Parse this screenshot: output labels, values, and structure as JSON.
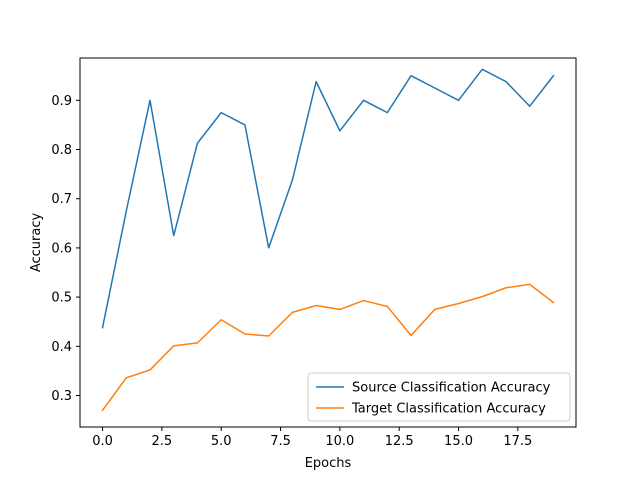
{
  "chart_data": {
    "type": "line",
    "title": "",
    "xlabel": "Epochs",
    "ylabel": "Accuracy",
    "xlim": [
      -0.95,
      19.95
    ],
    "ylim": [
      0.236,
      0.986
    ],
    "xticks": [
      0.0,
      2.5,
      5.0,
      7.5,
      10.0,
      12.5,
      15.0,
      17.5
    ],
    "xtick_labels": [
      "0.0",
      "2.5",
      "5.0",
      "7.5",
      "10.0",
      "12.5",
      "15.0",
      "17.5"
    ],
    "yticks": [
      0.3,
      0.4,
      0.5,
      0.6,
      0.7,
      0.8,
      0.9
    ],
    "ytick_labels": [
      "0.3",
      "0.4",
      "0.5",
      "0.6",
      "0.7",
      "0.8",
      "0.9"
    ],
    "grid": false,
    "legend_position": "bottom-right",
    "x": [
      0,
      1,
      2,
      3,
      4,
      5,
      6,
      7,
      8,
      9,
      10,
      11,
      12,
      13,
      14,
      15,
      16,
      17,
      18,
      19
    ],
    "series": [
      {
        "name": "Source Classification Accuracy",
        "color": "#1f77b4",
        "values": [
          0.438,
          0.675,
          0.9,
          0.625,
          0.813,
          0.875,
          0.85,
          0.6,
          0.738,
          0.938,
          0.838,
          0.9,
          0.875,
          0.95,
          0.925,
          0.9,
          0.963,
          0.938,
          0.888,
          0.95
        ]
      },
      {
        "name": "Target Classification Accuracy",
        "color": "#ff7f0e",
        "values": [
          0.27,
          0.336,
          0.352,
          0.401,
          0.407,
          0.454,
          0.425,
          0.421,
          0.469,
          0.483,
          0.475,
          0.493,
          0.481,
          0.422,
          0.475,
          0.487,
          0.501,
          0.519,
          0.526,
          0.489
        ]
      }
    ]
  }
}
